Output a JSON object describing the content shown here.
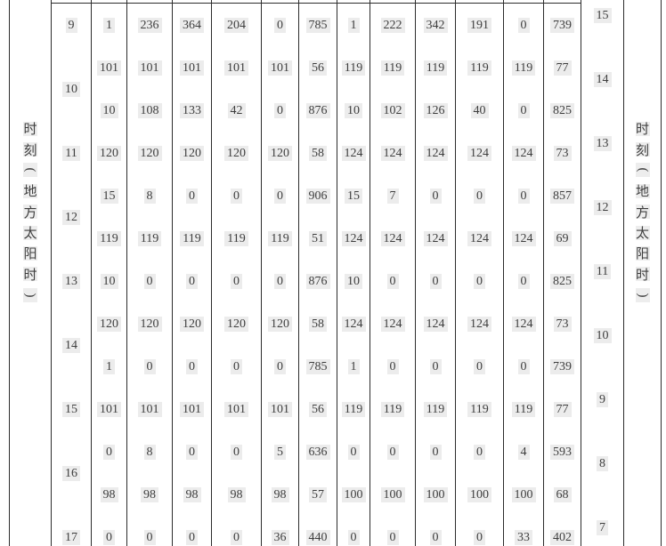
{
  "page": {
    "left_axis_label": "时刻（地方太阳时）",
    "right_axis_label": "时刻（地方太阳时）",
    "left_hours": [
      "9",
      "10",
      "11",
      "12",
      "13",
      "14",
      "15",
      "16",
      "17"
    ],
    "right_hours": [
      "15",
      "14",
      "13",
      "12",
      "11",
      "10",
      "9",
      "8",
      "7"
    ],
    "hour_row_spans": [
      1,
      2,
      1,
      2,
      1,
      2,
      1,
      2,
      1
    ],
    "data_rows": [
      [
        1,
        236,
        364,
        204,
        0,
        785,
        1,
        222,
        342,
        191,
        0,
        739
      ],
      [
        101,
        101,
        101,
        101,
        101,
        56,
        119,
        119,
        119,
        119,
        119,
        77
      ],
      [
        10,
        108,
        133,
        42,
        0,
        876,
        10,
        102,
        126,
        40,
        0,
        825
      ],
      [
        120,
        120,
        120,
        120,
        120,
        58,
        124,
        124,
        124,
        124,
        124,
        73
      ],
      [
        15,
        8,
        0,
        0,
        0,
        906,
        15,
        7,
        0,
        0,
        0,
        857
      ],
      [
        119,
        119,
        119,
        119,
        119,
        51,
        124,
        124,
        124,
        124,
        124,
        69
      ],
      [
        10,
        0,
        0,
        0,
        0,
        876,
        10,
        0,
        0,
        0,
        0,
        825
      ],
      [
        120,
        120,
        120,
        120,
        120,
        58,
        124,
        124,
        124,
        124,
        124,
        73
      ],
      [
        1,
        0,
        0,
        0,
        0,
        785,
        1,
        0,
        0,
        0,
        0,
        739
      ],
      [
        101,
        101,
        101,
        101,
        101,
        56,
        119,
        119,
        119,
        119,
        119,
        77
      ],
      [
        0,
        8,
        0,
        0,
        5,
        636,
        0,
        0,
        0,
        0,
        4,
        593
      ],
      [
        98,
        98,
        98,
        98,
        98,
        57,
        100,
        100,
        100,
        100,
        100,
        68
      ],
      [
        0,
        0,
        0,
        0,
        36,
        440,
        0,
        0,
        0,
        0,
        33,
        402
      ]
    ],
    "line_color": "#2c2c2c",
    "text_color": "#3e3e3e"
  }
}
